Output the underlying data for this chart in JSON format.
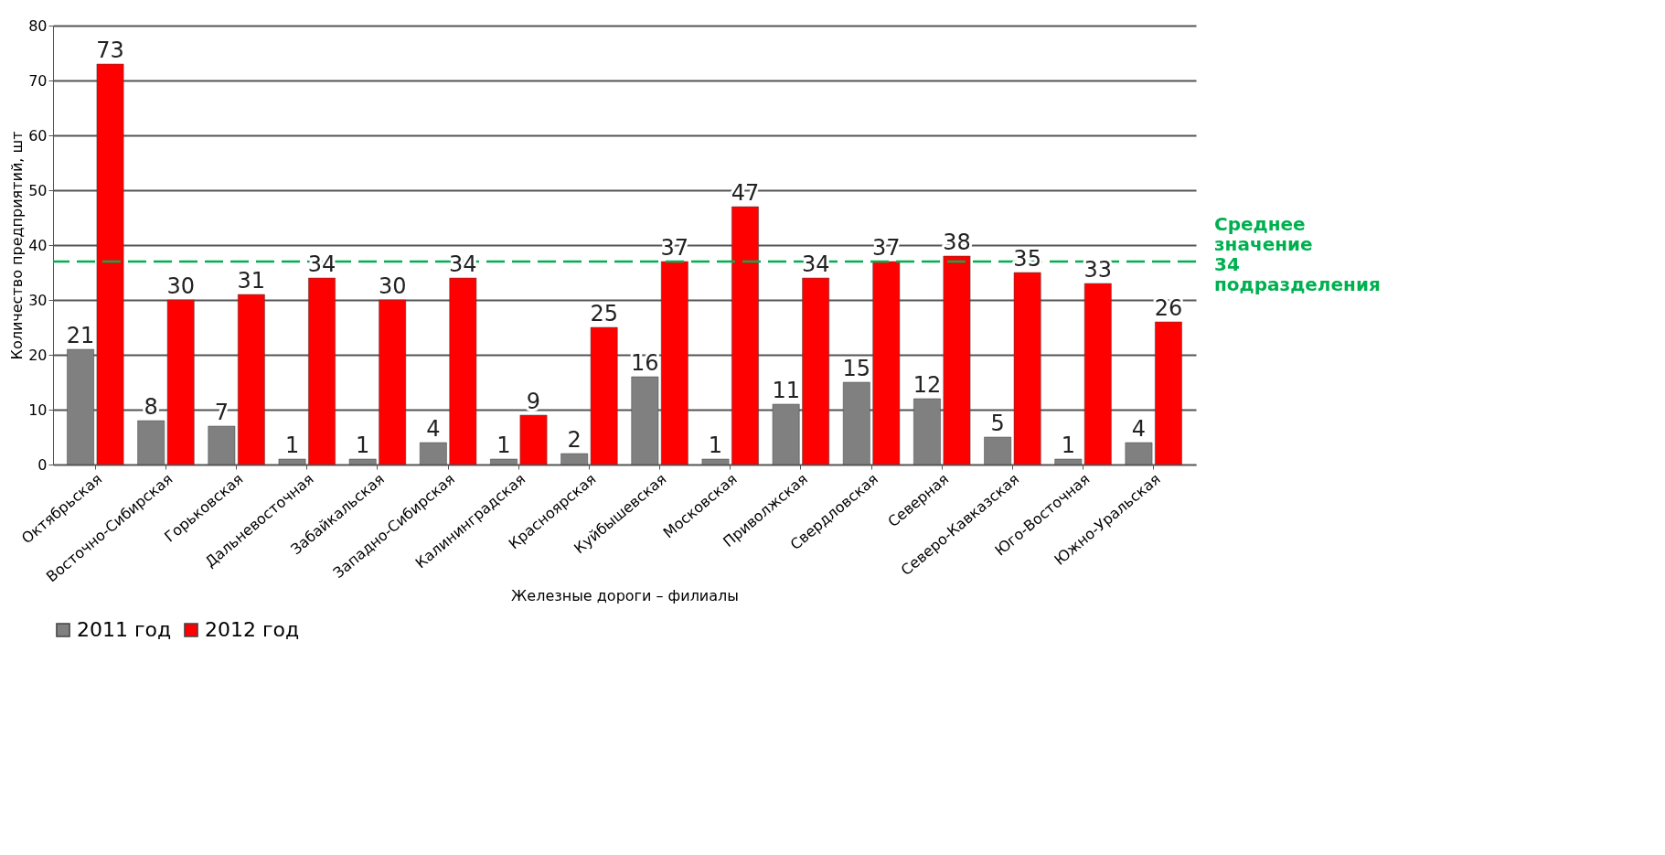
{
  "chart_data": {
    "type": "bar",
    "ylabel": "Количество предприятий, шт",
    "xlabel": "Железные дороги – филиалы",
    "categories": [
      "Октябрьская",
      "Восточно-Сибирская",
      "Горьковская",
      "Дальневосточная",
      "Забайкальская",
      "Западно-Сибирская",
      "Калининградская",
      "Красноярская",
      "Куйбышевская",
      "Московская",
      "Приволжская",
      "Свердловская",
      "Северная",
      "Северо-Кавказская",
      "Юго-Восточная",
      "Южно-Уральская"
    ],
    "series": [
      {
        "name": "2011 год",
        "color": "#808080",
        "values": [
          21,
          8,
          7,
          1,
          1,
          4,
          1,
          2,
          16,
          1,
          11,
          15,
          12,
          5,
          1,
          4
        ]
      },
      {
        "name": "2012 год",
        "color": "#ff0000",
        "values": [
          73,
          30,
          31,
          34,
          30,
          34,
          9,
          25,
          37,
          47,
          34,
          37,
          38,
          35,
          33,
          26
        ]
      }
    ],
    "ylim": [
      0,
      80
    ],
    "yticks": [
      0,
      10,
      20,
      30,
      40,
      50,
      60,
      70,
      80
    ],
    "grid": "y",
    "legend": "bottom",
    "data_labels": true,
    "ref_lines": [
      {
        "axis": "y",
        "value": 37,
        "label": "Среднее значение 34 подразделения",
        "color": "#00b050",
        "line_style": "dashed"
      }
    ]
  }
}
